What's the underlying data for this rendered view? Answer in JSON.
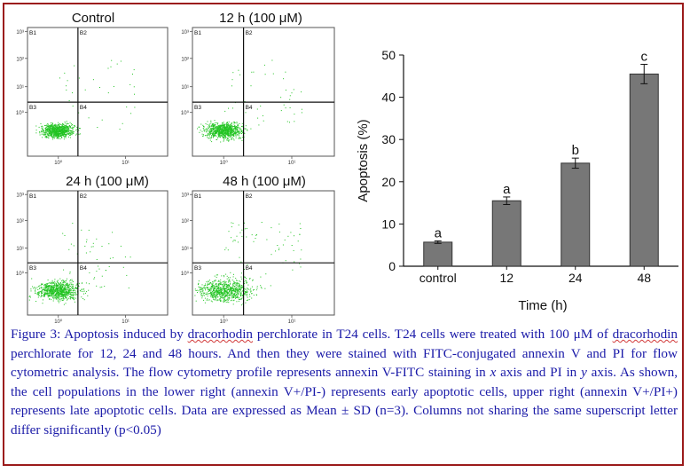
{
  "flow_panels": [
    {
      "title": "Control",
      "quadrants": [
        "B1",
        "B2",
        "B3",
        "B4"
      ]
    },
    {
      "title": "12 h (100 μM)",
      "quadrants": [
        "B1",
        "B2",
        "B3",
        "B4"
      ]
    },
    {
      "title": "24 h (100 μM)",
      "quadrants": [
        "B1",
        "B2",
        "B3",
        "B4"
      ]
    },
    {
      "title": "48 h (100 μM)",
      "quadrants": [
        "B1",
        "B2",
        "B3",
        "B4"
      ]
    }
  ],
  "flow_axis": {
    "y_ticks": [
      "10³",
      "10²",
      "10¹",
      "10⁰"
    ],
    "x_ticks": [
      "10⁰",
      "10¹"
    ]
  },
  "colors": {
    "frame": "#9b1b1b",
    "caption": "#1a1aa8",
    "dots": "#22c422",
    "bars": "#777777"
  },
  "chart_data": {
    "type": "bar",
    "categories": [
      "control",
      "12",
      "24",
      "48"
    ],
    "values": [
      5.7,
      15.5,
      24.4,
      45.5
    ],
    "errors": [
      0.3,
      0.9,
      1.2,
      2.3
    ],
    "letters": [
      "a",
      "a",
      "b",
      "c"
    ],
    "xlabel": "Time (h)",
    "ylabel": "Apoptosis (%)",
    "ylim": [
      0,
      50
    ],
    "yticks": [
      0,
      10,
      20,
      30,
      40,
      50
    ]
  },
  "caption": {
    "p1": "Figure 3: Apoptosis induced by ",
    "u1": "dracorhodin",
    "p2": " perchlorate in T24 cells. T24 cells were treated with 100 μM of ",
    "u2": "dracorhodin",
    "p3": " perchlorate for 12, 24 and 48 hours. And then they were stained with FITC-conjugated annexin V and PI for flow cytometric analysis. The flow cytometry profile represents annexin V-FITC staining in ",
    "x": "x",
    "p4": " axis and PI in ",
    "y": "y",
    "p5": " axis. As shown, the cell populations in the lower right (annexin V+/PI-) represents early apoptotic cells, upper right (annexin V+/PI+) represents late apoptotic cells. Data are expressed as Mean ± SD (n=3). Columns not sharing the same superscript letter differ significantly (p<0.05)"
  }
}
